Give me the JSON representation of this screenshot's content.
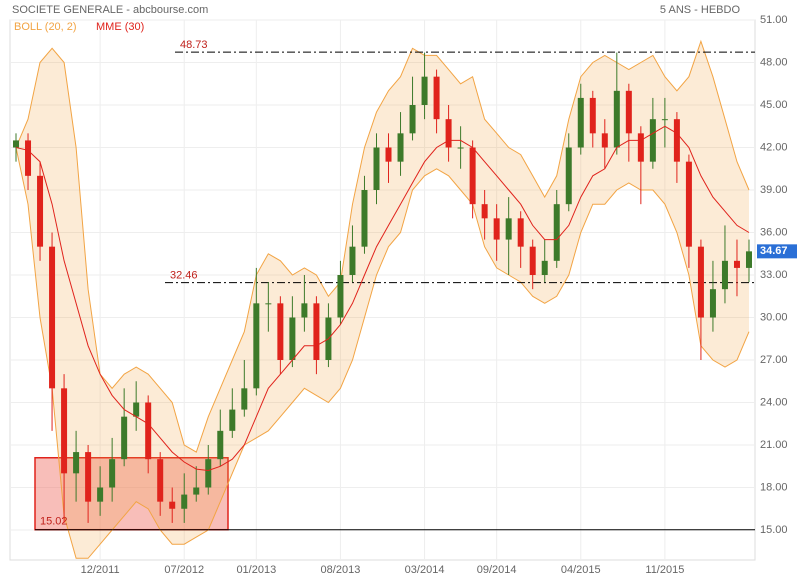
{
  "chart_data": {
    "type": "candlestick",
    "title": "SOCIETE GENERALE - abcbourse.com",
    "subtitle": "5 ANS - HEBDO",
    "categories": [
      null,
      null,
      null,
      null,
      null,
      null,
      null,
      "12/2011",
      null,
      null,
      null,
      null,
      null,
      null,
      "07/2012",
      null,
      null,
      null,
      null,
      null,
      "01/2013",
      null,
      null,
      null,
      null,
      null,
      null,
      "08/2013",
      null,
      null,
      null,
      null,
      null,
      null,
      "03/2014",
      null,
      null,
      null,
      null,
      null,
      "09/2014",
      null,
      null,
      null,
      null,
      null,
      null,
      "04/2015",
      null,
      null,
      null,
      null,
      null,
      null,
      "11/2015",
      null,
      null,
      null,
      null,
      null,
      null,
      null
    ],
    "open": [
      42,
      42.5,
      40,
      35,
      25,
      19,
      20.5,
      17,
      18,
      20,
      23,
      24,
      20,
      17,
      16.5,
      17.5,
      18,
      20,
      22,
      23.5,
      25,
      31,
      31,
      27,
      30,
      31,
      27,
      30,
      33,
      35,
      39,
      42,
      41,
      43,
      45,
      47,
      44,
      42,
      42,
      38,
      37,
      35.5,
      37,
      35,
      33,
      34,
      38,
      42,
      45.5,
      43,
      42,
      46,
      43,
      41,
      44,
      44,
      41,
      35,
      30,
      32,
      34,
      33.5
    ],
    "high": [
      43,
      43,
      41,
      36,
      26,
      22,
      21,
      19.5,
      21.5,
      25,
      25.5,
      24.5,
      20.5,
      18,
      19,
      19.5,
      21,
      23.5,
      25,
      27,
      33.5,
      32.5,
      31.5,
      31.5,
      33,
      31.5,
      31,
      34,
      36.5,
      40,
      43,
      43,
      44.5,
      47,
      48.7,
      47.5,
      45,
      43.5,
      42.5,
      39,
      38,
      38.5,
      37.5,
      35.5,
      35.5,
      39,
      43,
      46.5,
      46,
      44,
      48.7,
      46.5,
      43.5,
      45.5,
      45.5,
      44.5,
      41.5,
      35.5,
      34,
      36.5,
      35.5,
      35.5
    ],
    "low": [
      41,
      39,
      34,
      22,
      15.5,
      17,
      15.5,
      16,
      17,
      19.5,
      22,
      19,
      16,
      15.5,
      15.5,
      17,
      17.5,
      19.5,
      21.5,
      23,
      24.5,
      29,
      26,
      26.5,
      29,
      26,
      26.5,
      29.5,
      32.5,
      34.5,
      38,
      39.5,
      40,
      42.5,
      44,
      43,
      41,
      40.5,
      37,
      35.5,
      34,
      33,
      33.5,
      32,
      32.5,
      33.5,
      37.5,
      41.5,
      42,
      40.5,
      41.5,
      41,
      38,
      40.5,
      42,
      39.5,
      33.5,
      27,
      29,
      31,
      31.5,
      32.5
    ],
    "close": [
      42.5,
      40,
      35,
      25,
      19,
      20.5,
      17,
      18,
      20,
      23,
      24,
      20,
      17,
      16.5,
      17.5,
      18,
      20,
      22,
      23.5,
      25,
      31,
      31,
      27,
      30,
      31,
      27,
      30,
      33,
      35,
      39,
      42,
      41,
      43,
      45,
      47,
      44,
      42,
      42,
      38,
      37,
      35.5,
      37,
      35,
      33,
      34,
      38,
      42,
      45.5,
      43,
      42,
      46,
      43,
      41,
      44,
      44,
      41,
      35,
      30,
      32,
      34,
      33.5,
      34.67
    ],
    "up_color": "#3d7a2a",
    "down_color": "#e0231c",
    "overlays": [
      {
        "name": "BOLL (20, 2)",
        "color": "#f2a444",
        "upper": [
          42,
          44,
          48,
          49,
          48,
          42,
          32,
          26,
          25,
          26,
          26.5,
          26,
          25,
          24,
          21,
          20.5,
          23,
          25,
          27,
          29,
          33,
          34.5,
          34,
          33,
          33.5,
          33,
          31.5,
          32.5,
          38,
          42,
          44.5,
          46,
          47,
          49,
          48.5,
          48.5,
          47.5,
          46.5,
          47,
          44,
          43,
          42,
          41.5,
          40,
          38.5,
          40,
          44,
          47,
          48,
          48.5,
          48,
          47.5,
          48,
          48.5,
          47,
          46,
          47,
          49.5,
          47,
          44,
          41,
          39
        ],
        "lower": [
          42,
          38,
          30,
          25,
          16,
          13,
          13,
          14,
          15,
          16,
          17,
          16.5,
          15,
          14,
          14,
          14.5,
          15,
          17,
          19,
          21,
          21.5,
          22,
          23,
          24,
          25,
          24.5,
          24,
          25,
          27,
          30,
          33,
          35,
          36,
          39,
          40,
          40.5,
          40,
          39,
          38,
          35,
          33.5,
          33,
          32.5,
          31.5,
          31,
          31.5,
          33,
          36,
          38,
          38,
          39,
          39.5,
          39,
          39,
          38,
          36,
          33,
          28,
          27,
          26.5,
          27,
          29
        ]
      },
      {
        "name": "MME (30)",
        "color": "#e0231c",
        "values": [
          42,
          41.8,
          41,
          38,
          34,
          31,
          28,
          26,
          24.5,
          23.5,
          23,
          22.5,
          21.5,
          20.5,
          19.8,
          19.3,
          19.2,
          19.5,
          20,
          21,
          23,
          25,
          26,
          27,
          28,
          28,
          28.5,
          29.5,
          31,
          33,
          35,
          36.5,
          38,
          39.5,
          41,
          42,
          42.5,
          42.5,
          42,
          41,
          40,
          39,
          38,
          36.5,
          35.5,
          35.5,
          36.5,
          38.5,
          40,
          40.5,
          42,
          42.5,
          42.5,
          43,
          43.5,
          43,
          42,
          40,
          38.5,
          37.5,
          36.5,
          36
        ]
      }
    ],
    "levels": [
      48.73,
      32.46,
      15.02
    ],
    "zone_top": 20.1,
    "ylim": [
      15,
      51
    ],
    "yticks": [
      {
        "value": 15,
        "label": "15.00"
      },
      {
        "value": 18,
        "label": "18.00"
      },
      {
        "value": 21,
        "label": "21.00"
      },
      {
        "value": 24,
        "label": "24.00"
      },
      {
        "value": 27,
        "label": "27.00"
      },
      {
        "value": 30,
        "label": "30.00"
      },
      {
        "value": 33,
        "label": "33.00"
      },
      {
        "value": 36,
        "label": "36.00"
      },
      {
        "value": 39,
        "label": "39.00"
      },
      {
        "value": 42,
        "label": "42.00"
      },
      {
        "value": 45,
        "label": "45.00"
      },
      {
        "value": 48,
        "label": "48.00"
      },
      {
        "value": 51,
        "label": "51.00"
      }
    ],
    "grid": true,
    "last_price_color": "#2a6fd6"
  }
}
